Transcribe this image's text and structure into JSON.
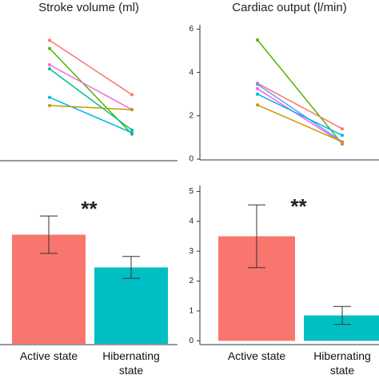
{
  "chart_data": [
    {
      "type": "line",
      "title": "Stroke volume (ml)",
      "ylim": [
        0,
        100
      ],
      "series": [
        {
          "color": "#f8766d",
          "values": [
            88,
            48
          ]
        },
        {
          "color": "#53b400",
          "values": [
            82,
            19
          ]
        },
        {
          "color": "#f564e3",
          "values": [
            70,
            37
          ]
        },
        {
          "color": "#00c08b",
          "values": [
            67,
            22
          ]
        },
        {
          "color": "#00b6eb",
          "values": [
            46,
            20
          ]
        },
        {
          "color": "#c49a00",
          "values": [
            40,
            37
          ]
        }
      ]
    },
    {
      "type": "line",
      "title": "Cardiac output (l/min)",
      "ylim": [
        0,
        6.2
      ],
      "yticks": [
        0,
        2,
        4,
        6
      ],
      "series": [
        {
          "color": "#53b400",
          "values": [
            5.5,
            0.7
          ]
        },
        {
          "color": "#f8766d",
          "values": [
            3.5,
            1.4
          ]
        },
        {
          "color": "#619cff",
          "values": [
            3.45,
            0.8
          ]
        },
        {
          "color": "#f564e3",
          "values": [
            3.25,
            0.75
          ]
        },
        {
          "color": "#00b6eb",
          "values": [
            3.0,
            1.1
          ]
        },
        {
          "color": "#c49a00",
          "values": [
            2.5,
            0.8
          ]
        }
      ]
    },
    {
      "type": "bar",
      "ylim": [
        0,
        100
      ],
      "categories": [
        "Active state",
        "Hibernating state"
      ],
      "values": [
        70,
        49
      ],
      "errors": [
        12,
        7
      ],
      "colors": [
        "#f8766d",
        "#00bfc4"
      ],
      "annotation": "**"
    },
    {
      "type": "bar",
      "ylim": [
        -0.1,
        5.2
      ],
      "yticks": [
        0,
        1,
        2,
        3,
        4,
        5
      ],
      "categories": [
        "Active state",
        "Hibernating state"
      ],
      "values": [
        3.5,
        0.85
      ],
      "errors": [
        1.05,
        0.3
      ],
      "colors": [
        "#f8766d",
        "#00bfc4"
      ],
      "annotation": "**"
    }
  ]
}
